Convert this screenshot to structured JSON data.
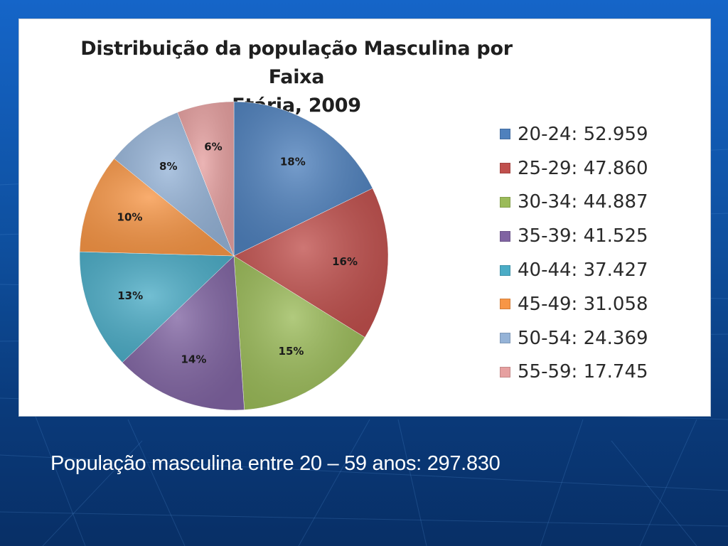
{
  "chart_data": {
    "type": "pie",
    "title": "Distribuição da população Masculina por Faixa Etária, 2009",
    "title_lines": [
      "Distribuição da população Masculina por Faixa",
      "Etária, 2009"
    ],
    "legend_position": "right",
    "slices": [
      {
        "category": "20-24",
        "value": 52959,
        "label": "18%",
        "legend": "20-24: 52.959",
        "color": "#4f81bd"
      },
      {
        "category": "25-29",
        "value": 47860,
        "label": "16%",
        "legend": "25-29: 47.860",
        "color": "#c0504d"
      },
      {
        "category": "30-34",
        "value": 44887,
        "label": "15%",
        "legend": "30-34: 44.887",
        "color": "#9bbb59"
      },
      {
        "category": "35-39",
        "value": 41525,
        "label": "14%",
        "legend": "35-39: 41.525",
        "color": "#8064a2"
      },
      {
        "category": "40-44",
        "value": 37427,
        "label": "13%",
        "legend": "40-44: 37.427",
        "color": "#4bacc6"
      },
      {
        "category": "45-49",
        "value": 31058,
        "label": "10%",
        "legend": "45-49: 31.058",
        "color": "#f79646"
      },
      {
        "category": "50-54",
        "value": 24369,
        "label": "8%",
        "legend": "50-54: 24.369",
        "color": "#95b3d7"
      },
      {
        "category": "55-59",
        "value": 17745,
        "label": "6%",
        "legend": "55-59: 17.745",
        "color": "#e6a0a0"
      }
    ]
  },
  "caption": "População masculina entre 20 – 59 anos: 297.830"
}
